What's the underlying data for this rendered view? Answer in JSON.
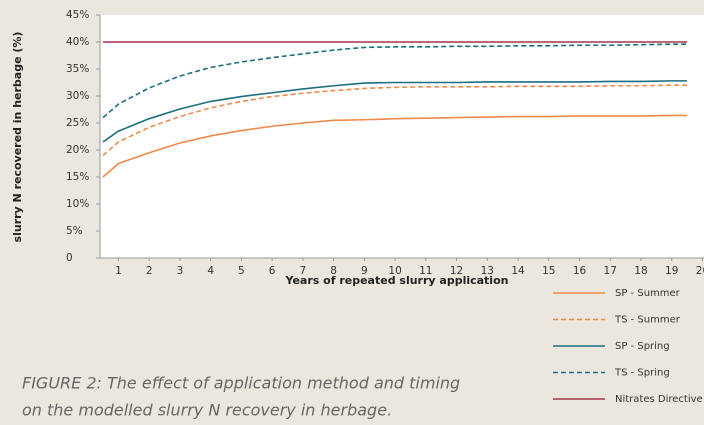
{
  "chart_data": {
    "type": "line",
    "x_label": "Years of repeated slurry application",
    "y_label": "slurry N recovered in herbage (%)",
    "caption": [
      "FIGURE 2: The effect of application method and timing",
      "on the modelled slurry N recovery in herbage."
    ],
    "x": [
      0.5,
      1,
      2,
      3,
      4,
      5,
      6,
      7,
      8,
      9,
      10,
      11,
      12,
      13,
      14,
      15,
      16,
      17,
      18,
      19,
      19.5
    ],
    "xlim": [
      0.4,
      20.05
    ],
    "xticks": [
      1,
      2,
      3,
      4,
      5,
      6,
      7,
      8,
      9,
      10,
      11,
      12,
      13,
      14,
      15,
      16,
      17,
      18,
      19,
      20
    ],
    "ylim": [
      0,
      45
    ],
    "yticks": [
      0,
      {
        "value": 5,
        "label": "5%"
      },
      {
        "value": 10,
        "label": "10%"
      },
      {
        "value": 15,
        "label": "15%"
      },
      {
        "value": 20,
        "label": "20%"
      },
      {
        "value": 25,
        "label": "25%"
      },
      {
        "value": 30,
        "label": "30%"
      },
      {
        "value": 35,
        "label": "35%"
      },
      {
        "value": 40,
        "label": "40%"
      },
      {
        "value": 45,
        "label": "45%"
      }
    ],
    "grid": false,
    "series": [
      {
        "name": "SP - Summer",
        "color": "#f08a4b",
        "dashed": false,
        "values": [
          15,
          17.5,
          19.5,
          21.3,
          22.6,
          23.6,
          24.4,
          25.0,
          25.5,
          25.6,
          25.8,
          25.9,
          26.0,
          26.1,
          26.2,
          26.2,
          26.3,
          26.3,
          26.3,
          26.4,
          26.4
        ]
      },
      {
        "name": "TS - Summer",
        "color": "#f08a4b",
        "dashed": true,
        "values": [
          19,
          21.5,
          24.2,
          26.2,
          27.8,
          29,
          29.9,
          30.5,
          31,
          31.4,
          31.6,
          31.7,
          31.7,
          31.7,
          31.8,
          31.8,
          31.8,
          31.9,
          31.9,
          32,
          32
        ]
      },
      {
        "name": "SP - Spring",
        "color": "#1a6e7e",
        "dashed": false,
        "values": [
          21.5,
          23.5,
          25.8,
          27.6,
          29,
          29.9,
          30.6,
          31.3,
          31.9,
          32.4,
          32.5,
          32.5,
          32.5,
          32.6,
          32.6,
          32.6,
          32.6,
          32.7,
          32.7,
          32.8,
          32.8
        ]
      },
      {
        "name": "TS - Spring",
        "color": "#1a6e7e",
        "dashed": true,
        "values": [
          26,
          28.5,
          31.5,
          33.7,
          35.3,
          36.3,
          37.1,
          37.8,
          38.5,
          39,
          39.1,
          39.1,
          39.2,
          39.2,
          39.3,
          39.3,
          39.4,
          39.4,
          39.5,
          39.6,
          39.6
        ]
      },
      {
        "name": "Nitrates Directive",
        "color": "#a8344a",
        "dashed": false,
        "values": [
          40,
          40,
          40,
          40,
          40,
          40,
          40,
          40,
          40,
          40,
          40,
          40,
          40,
          40,
          40,
          40,
          40,
          40,
          40,
          40,
          40
        ]
      }
    ]
  }
}
